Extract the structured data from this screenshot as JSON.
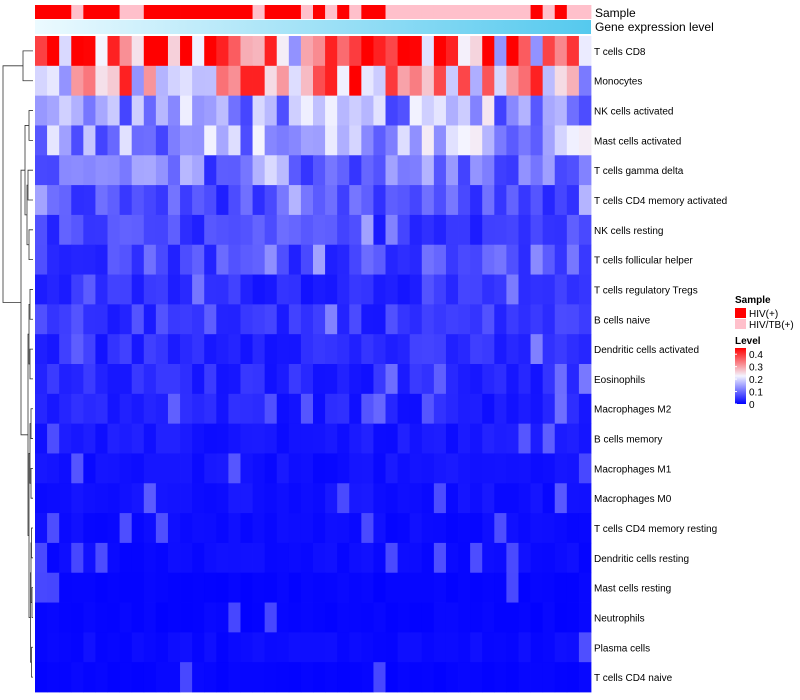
{
  "chart_data": {
    "type": "heatmap",
    "annotation_tracks": [
      "Sample",
      "Gene expression level"
    ],
    "rows": [
      "T cells CD8",
      "Monocytes",
      "NK cells activated",
      "Mast cells activated",
      "T cells gamma delta",
      "T cells CD4 memory activated",
      "NK cells resting",
      "T cells follicular helper",
      "T cells regulatory  Tregs",
      "B cells naive",
      "Dendritic cells activated",
      "Eosinophils",
      "Macrophages M2",
      "B cells memory",
      "Macrophages M1",
      "Macrophages M0",
      "T cells CD4 memory resting",
      "Dendritic cells resting",
      "Mast cells resting",
      "Neutrophils",
      "Plasma cells",
      "T cells CD4 naive"
    ],
    "n_columns": 46,
    "sample_groups": [
      "HIV(+)",
      "HIV(+)",
      "HIV(+)",
      "HIV/TB(+)",
      "HIV(+)",
      "HIV(+)",
      "HIV(+)",
      "HIV/TB(+)",
      "HIV/TB(+)",
      "HIV(+)",
      "HIV(+)",
      "HIV(+)",
      "HIV(+)",
      "HIV(+)",
      "HIV(+)",
      "HIV(+)",
      "HIV(+)",
      "HIV(+)",
      "HIV/TB(+)",
      "HIV(+)",
      "HIV(+)",
      "HIV(+)",
      "HIV/TB(+)",
      "HIV(+)",
      "HIV/TB(+)",
      "HIV(+)",
      "HIV/TB(+)",
      "HIV(+)",
      "HIV(+)",
      "HIV/TB(+)",
      "HIV/TB(+)",
      "HIV/TB(+)",
      "HIV/TB(+)",
      "HIV/TB(+)",
      "HIV/TB(+)",
      "HIV/TB(+)",
      "HIV/TB(+)",
      "HIV/TB(+)",
      "HIV/TB(+)",
      "HIV/TB(+)",
      "HIV/TB(+)",
      "HIV(+)",
      "HIV/TB(+)",
      "HIV(+)",
      "HIV/TB(+)",
      "HIV/TB(+)"
    ],
    "row_base_levels": [
      0.33,
      0.25,
      0.14,
      0.15,
      0.1,
      0.07,
      0.06,
      0.07,
      0.04,
      0.05,
      0.04,
      0.035,
      0.03,
      0.02,
      0.015,
      0.015,
      0.01,
      0.01,
      0.005,
      0.005,
      0.01,
      0.005
    ],
    "level_range": [
      0,
      0.45
    ],
    "color_scale": {
      "low": "#0000ff",
      "mid": "#f4f4ff",
      "high": "#ff0000"
    },
    "legend": {
      "sample_title": "Sample",
      "sample_items": [
        {
          "label": "HIV(+)",
          "color": "#ff0000"
        },
        {
          "label": "HIV/TB(+)",
          "color": "#ffc0cb"
        }
      ],
      "level_title": "Level",
      "level_ticks": [
        0.4,
        0.3,
        0.2,
        0.1,
        0
      ],
      "level_tick_labels": [
        "0.4",
        "0.3",
        "0.2",
        "0.1",
        "0"
      ]
    },
    "expression_bar": {
      "start_color": "#ecfaff",
      "end_color": "#55c9ee"
    }
  }
}
